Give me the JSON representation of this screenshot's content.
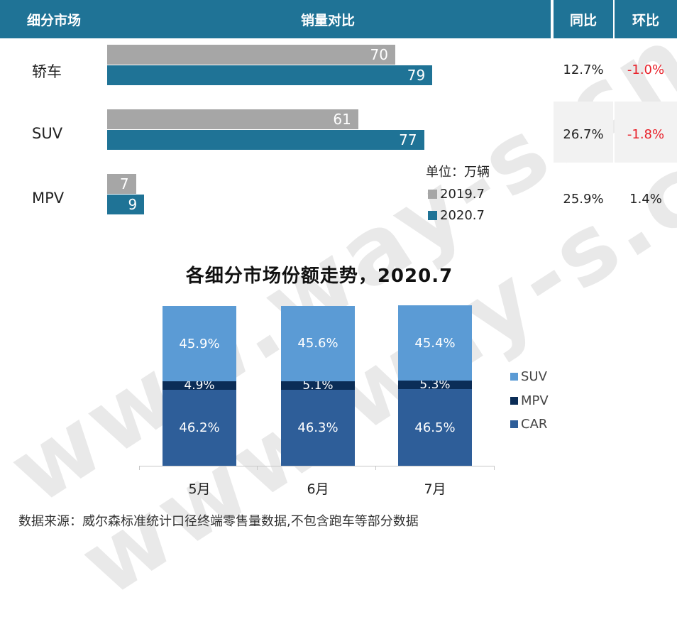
{
  "watermark": "www.way-s.cn",
  "table": {
    "headers": {
      "segment": "细分市场",
      "sales": "销量对比",
      "yoy": "同比",
      "mom": "环比"
    },
    "unit": "单位：万辆",
    "legend": {
      "y2019": "2019.7",
      "y2020": "2020.7",
      "color2019": "#a6a6a6",
      "color2020": "#1f7396"
    }
  },
  "chart_data": [
    {
      "type": "bar",
      "orientation": "horizontal",
      "categories": [
        "轿车",
        "SUV",
        "MPV"
      ],
      "series": [
        {
          "name": "2019.7",
          "values": [
            70,
            61,
            7
          ]
        },
        {
          "name": "2020.7",
          "values": [
            79,
            77,
            9
          ]
        }
      ],
      "yoy": [
        "12.7%",
        "26.7%",
        "25.9%"
      ],
      "mom": [
        "-1.0%",
        "-1.8%",
        "1.4%"
      ],
      "unit": "万辆"
    },
    {
      "type": "bar",
      "stacked": true,
      "title": "各细分市场份额走势，2020.7",
      "categories": [
        "5月",
        "6月",
        "7月"
      ],
      "series": [
        {
          "name": "CAR",
          "values": [
            46.2,
            46.3,
            46.5
          ],
          "labels": [
            "46.2%",
            "46.3%",
            "46.5%"
          ],
          "color": "#2e5e99"
        },
        {
          "name": "MPV",
          "values": [
            4.9,
            5.1,
            5.3
          ],
          "labels": [
            "4.9%",
            "5.1%",
            "5.3%"
          ],
          "color": "#0b2d57"
        },
        {
          "name": "SUV",
          "values": [
            45.9,
            45.6,
            45.4
          ],
          "labels": [
            "45.9%",
            "45.6%",
            "45.4%"
          ],
          "color": "#5b9bd5"
        }
      ],
      "legend": [
        "SUV",
        "MPV",
        "CAR"
      ]
    }
  ],
  "source": "数据来源：威尔森标准统计口径终端零售量数据,不包含跑车等部分数据"
}
